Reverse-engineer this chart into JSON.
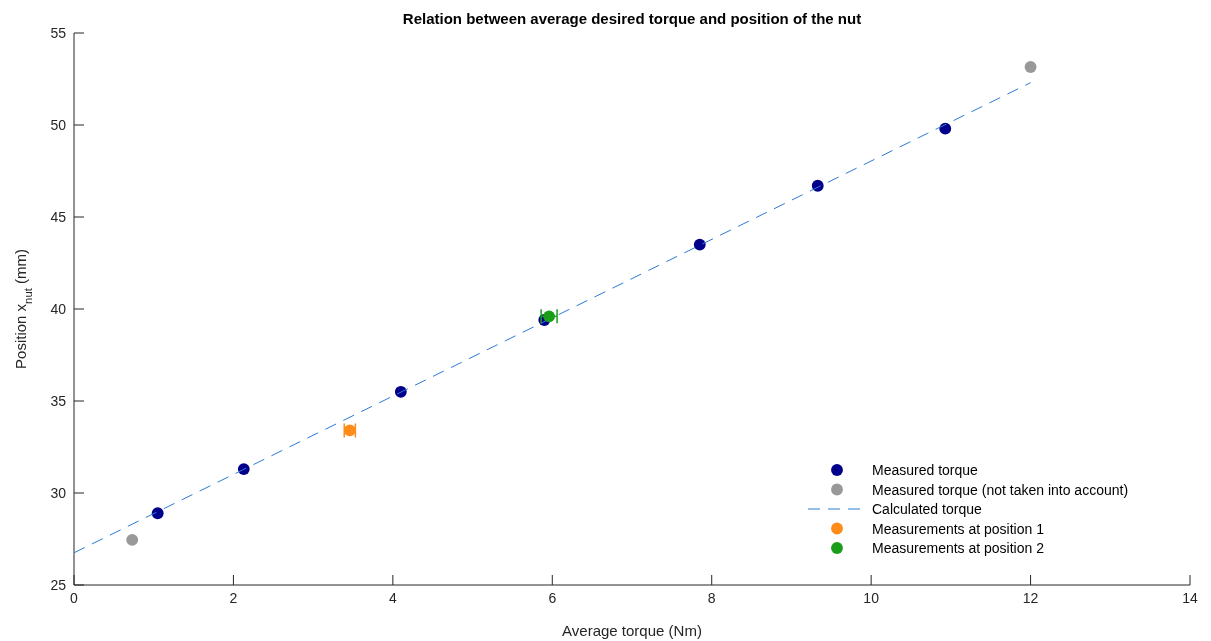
{
  "chart_data": {
    "type": "scatter",
    "title": "Relation between average desired torque and position of the nut",
    "xlabel": "Average torque (Nm)",
    "ylabel": "Position x$_{nut}$ (mm)",
    "xlim": [
      0,
      14
    ],
    "xticks": [
      0,
      2,
      4,
      6,
      8,
      10,
      12,
      14
    ],
    "ylim": [
      25,
      55
    ],
    "yticks": [
      25,
      30,
      35,
      40,
      45,
      50,
      55
    ],
    "grid": false,
    "legend": "bottom right",
    "marker": "circle",
    "series": [
      {
        "name": "Measured torque",
        "color": "#00008b",
        "x": [
          1.05,
          2.13,
          4.1,
          5.9,
          7.85,
          9.33,
          10.93
        ],
        "values": [
          28.9,
          31.3,
          35.5,
          39.4,
          43.5,
          46.7,
          49.8
        ]
      },
      {
        "name": "Measured torque (not taken into account)",
        "color": "#999999",
        "x": [
          0.73,
          12.0
        ],
        "values": [
          27.45,
          53.15
        ]
      },
      {
        "name": "Calculated torque",
        "type": "line",
        "line_style": "dashed",
        "marker": "none",
        "color": "#2b7bd6",
        "x": [
          0,
          12
        ],
        "values": [
          26.75,
          52.3
        ]
      },
      {
        "name": "Measurements at position 1",
        "color": "#ff8c1a",
        "x": [
          3.46
        ],
        "values": [
          33.4
        ],
        "xerrors": [
          0.07
        ]
      },
      {
        "name": "Measurements at position 2",
        "color": "#1a9e1a",
        "x": [
          5.96
        ],
        "values": [
          39.6
        ],
        "xerrors": [
          0.1
        ]
      }
    ]
  }
}
